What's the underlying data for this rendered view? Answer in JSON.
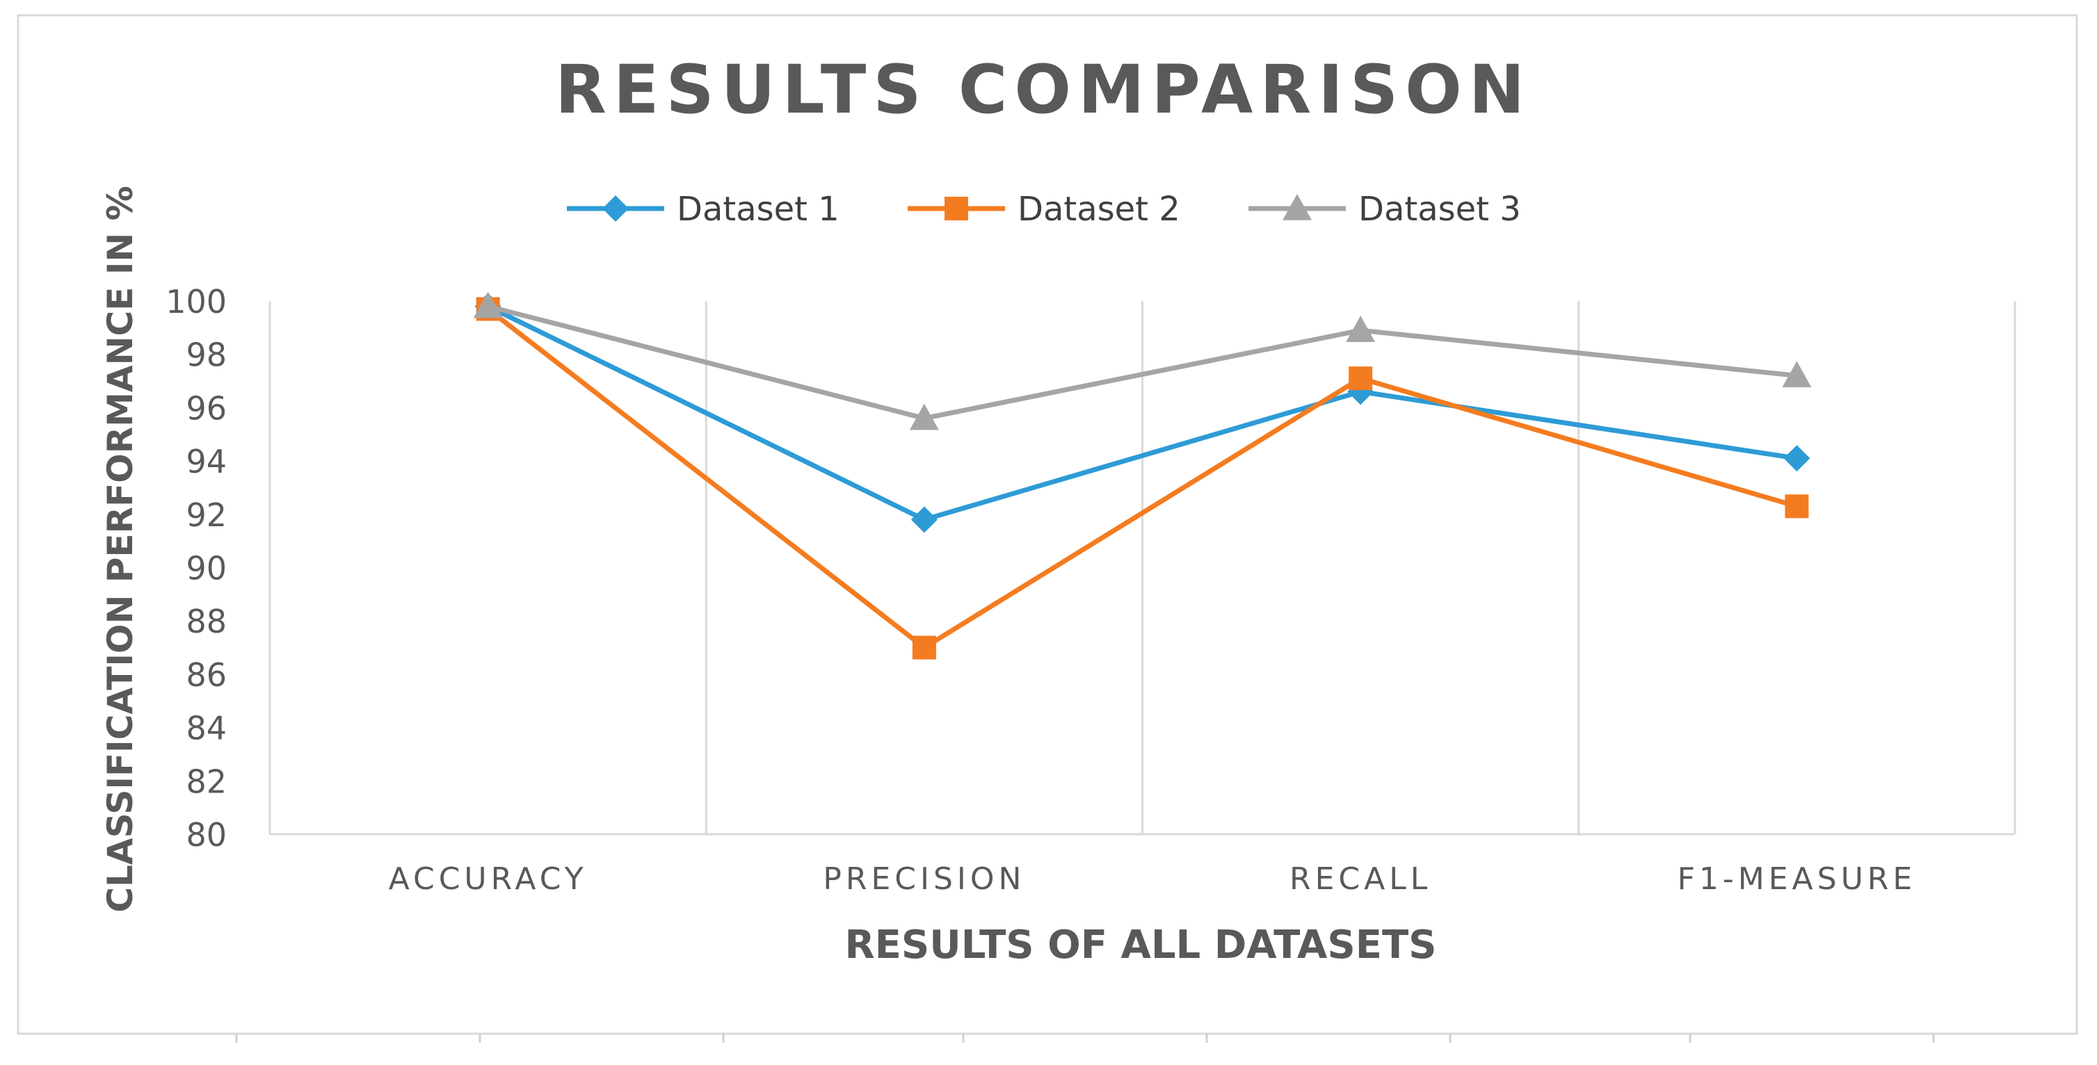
{
  "chart_data": {
    "type": "line",
    "title": "RESULTS COMPARISON",
    "xlabel": "RESULTS OF ALL DATASETS",
    "ylabel": "CLASSIFICATION PERFORMANCE IN %",
    "categories": [
      "ACCURACY",
      "PRECISION",
      "RECALL",
      "F1-MEASURE"
    ],
    "ylim": [
      80,
      100
    ],
    "yticks": [
      "80",
      "82",
      "84",
      "86",
      "88",
      "90",
      "92",
      "94",
      "96",
      "98",
      "100"
    ],
    "grid": "vertical",
    "legend_position": "top",
    "series": [
      {
        "name": "Dataset 1",
        "color": "#2E9BD6",
        "marker": "diamond",
        "values": [
          99.8,
          91.8,
          96.6,
          94.1
        ]
      },
      {
        "name": "Dataset 2",
        "color": "#F47C20",
        "marker": "square",
        "values": [
          99.7,
          87.0,
          97.1,
          92.3
        ]
      },
      {
        "name": "Dataset 3",
        "color": "#A5A5A5",
        "marker": "triangle",
        "values": [
          99.8,
          95.6,
          98.9,
          97.2
        ]
      }
    ]
  }
}
